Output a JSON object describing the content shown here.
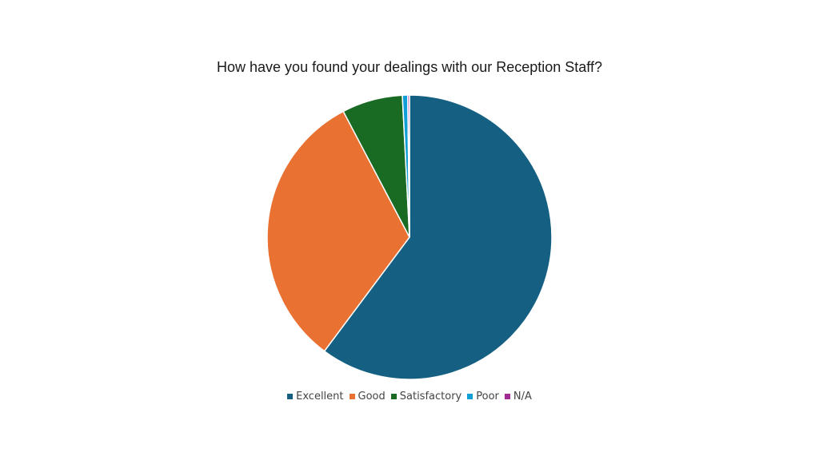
{
  "chart_data": {
    "type": "pie",
    "title": "How have you found your dealings with our Reception Staff?",
    "categories": [
      "Excellent",
      "Good",
      "Satisfactory",
      "Poor",
      "N/A"
    ],
    "values": [
      60.2,
      32.1,
      6.9,
      0.6,
      0.2
    ],
    "unit": "%",
    "colors": [
      "#156082",
      "#E97132",
      "#196B24",
      "#0F9ED5",
      "#A02B93"
    ],
    "legend": "bottom"
  }
}
